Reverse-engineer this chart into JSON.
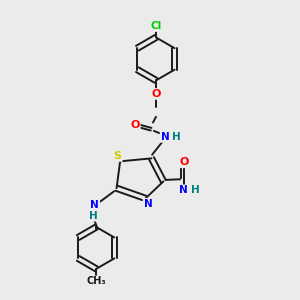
{
  "bg_color": "#ebebeb",
  "bond_color": "#1a1a1a",
  "atom_colors": {
    "Cl": "#00cc00",
    "O": "#ff0000",
    "N": "#0000ff",
    "S": "#cccc00",
    "H": "#008080",
    "C": "#1a1a1a"
  },
  "figsize": [
    3.0,
    3.0
  ],
  "dpi": 100
}
